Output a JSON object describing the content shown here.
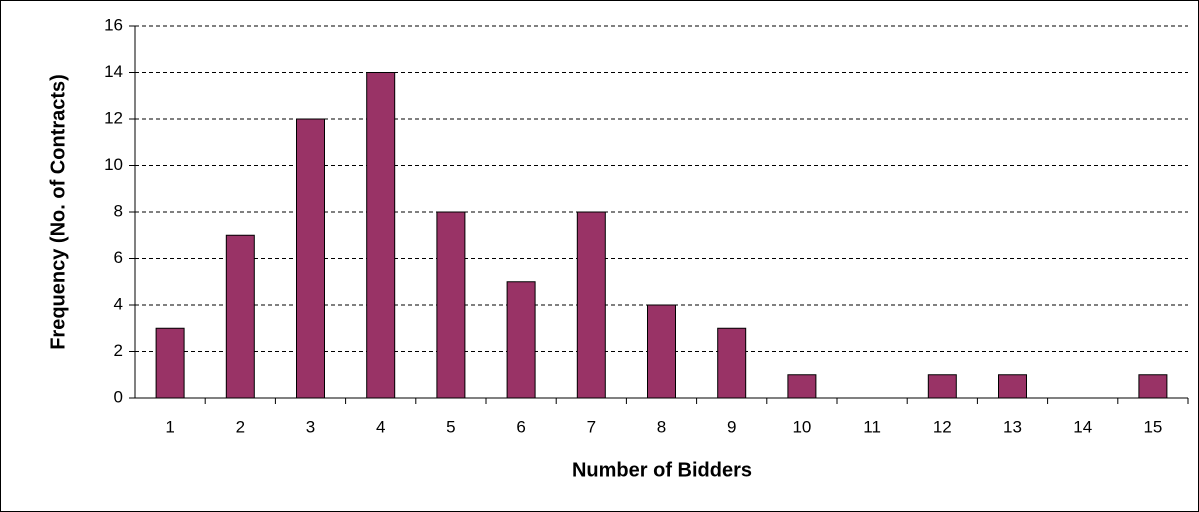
{
  "chart_data": {
    "type": "bar",
    "xlabel": "Number of Bidders",
    "ylabel": "Frequency (No. of Contracts)",
    "categories": [
      "1",
      "2",
      "3",
      "4",
      "5",
      "6",
      "7",
      "8",
      "9",
      "10",
      "11",
      "12",
      "13",
      "14",
      "15"
    ],
    "values": [
      3,
      7,
      12,
      14,
      8,
      5,
      8,
      4,
      3,
      1,
      0,
      1,
      1,
      0,
      1
    ],
    "color": "#993366",
    "ylim": [
      0,
      16
    ],
    "yticks": [
      0,
      2,
      4,
      6,
      8,
      10,
      12,
      14,
      16
    ],
    "grid": true
  }
}
